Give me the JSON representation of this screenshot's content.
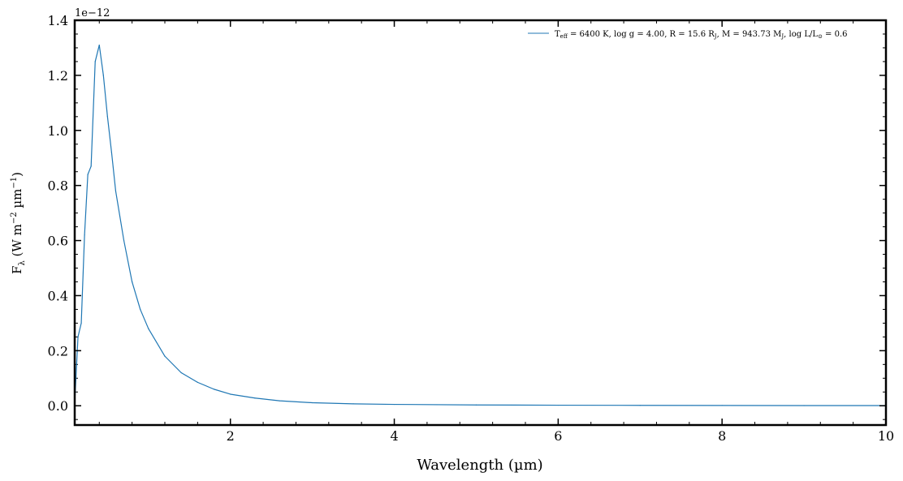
{
  "chart_data": {
    "type": "line",
    "xlabel": "Wavelength (µm)",
    "ylabel": "F_λ (W m⁻² µm⁻¹)",
    "ylabel_parts": {
      "main": "F",
      "sub": "λ",
      "units_pre": " (W m",
      "exp1": "−2",
      "units_mid": " µm",
      "exp2": "−1",
      "units_post": ")"
    },
    "y_offset_text": "1e−12",
    "xlim": [
      0.1,
      10
    ],
    "ylim": [
      -0.07,
      1.4
    ],
    "x_ticks": [
      2,
      4,
      6,
      8,
      10
    ],
    "x_tick_labels": [
      "2",
      "4",
      "6",
      "8",
      "10"
    ],
    "y_ticks": [
      0.0,
      0.2,
      0.4,
      0.6,
      0.8,
      1.0,
      1.2,
      1.4
    ],
    "y_tick_labels": [
      "0.0",
      "0.2",
      "0.4",
      "0.6",
      "0.8",
      "1.0",
      "1.2",
      "1.4"
    ],
    "legend_location": "top-right",
    "series": [
      {
        "name": "Teff = 6400 K, log g = 4.00, R = 15.6 RJ, M = 943.73 MJ, log L/L⊙ = 0.6",
        "legend": {
          "t": "T",
          "t_sub": "eff",
          "p1": " = 6400 K, log g = 4.00, R = 15.6 R",
          "r_sub": "J",
          "p2": ", M = 943.73 M",
          "m_sub": "J",
          "p3": ", log L/L",
          "l_sub": "⊙",
          "p4": " = 0.6"
        },
        "color": "#1f77b4",
        "x": [
          0.1,
          0.14,
          0.18,
          0.22,
          0.26,
          0.3,
          0.35,
          0.4,
          0.45,
          0.5,
          0.55,
          0.6,
          0.7,
          0.8,
          0.9,
          1.0,
          1.2,
          1.4,
          1.6,
          1.8,
          2.0,
          2.3,
          2.6,
          3.0,
          3.5,
          4.0,
          5.0,
          6.0,
          7.0,
          8.0,
          9.0,
          10.0
        ],
        "y": [
          0.01,
          0.25,
          0.3,
          0.62,
          0.84,
          0.87,
          1.25,
          1.31,
          1.2,
          1.05,
          0.92,
          0.78,
          0.6,
          0.45,
          0.35,
          0.28,
          0.18,
          0.12,
          0.085,
          0.06,
          0.042,
          0.028,
          0.018,
          0.011,
          0.007,
          0.005,
          0.003,
          0.002,
          0.0015,
          0.001,
          0.0008,
          0.0006
        ]
      }
    ]
  }
}
